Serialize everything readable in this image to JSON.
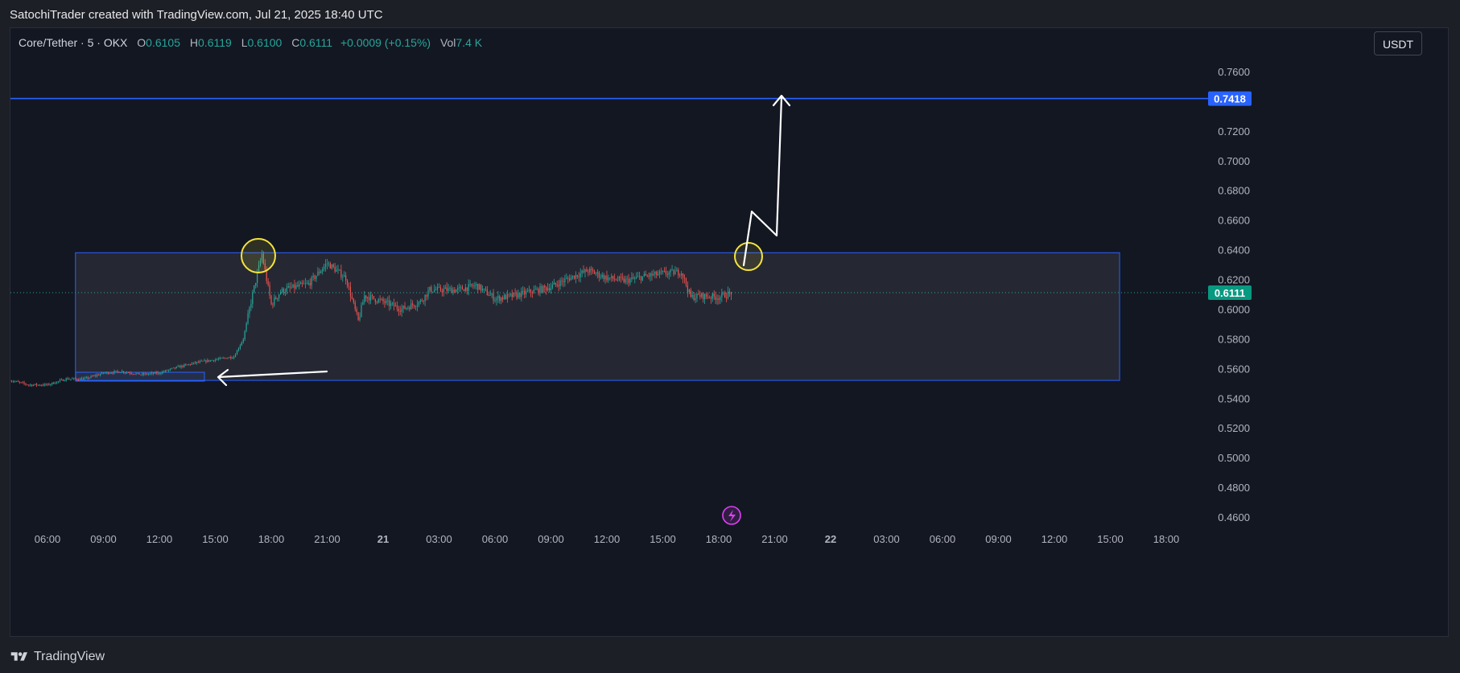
{
  "header": {
    "credit": "SatochiTrader created with TradingView.com, Jul 21, 2025 18:40 UTC"
  },
  "legend": {
    "symbol": "Core/Tether · 5 · OKX",
    "o_label": "O",
    "o": "0.6105",
    "h_label": "H",
    "h": "0.6119",
    "l_label": "L",
    "l": "0.6100",
    "c_label": "C",
    "c": "0.6111",
    "change": "+0.0009 (+0.15%)",
    "vol_label": "Vol",
    "vol": "7.4 K"
  },
  "currency_button": "USDT",
  "price_axis": {
    "ticks": [
      "0.7600",
      "0.7200",
      "0.7000",
      "0.6800",
      "0.6600",
      "0.6400",
      "0.6200",
      "0.6000",
      "0.5800",
      "0.5600",
      "0.5400",
      "0.5200",
      "0.5000",
      "0.4800",
      "0.4600"
    ],
    "target_badge": "0.7418",
    "last_price_badge": "0.6111"
  },
  "time_axis": {
    "ticks": [
      "06:00",
      "09:00",
      "12:00",
      "15:00",
      "18:00",
      "21:00",
      "21",
      "03:00",
      "06:00",
      "09:00",
      "12:00",
      "15:00",
      "18:00",
      "21:00",
      "22",
      "03:00",
      "06:00",
      "09:00",
      "12:00",
      "15:00",
      "18:00"
    ]
  },
  "colors": {
    "background": "#131722",
    "up": "#26a69a",
    "down": "#ef5350",
    "target_line": "#2962ff",
    "range_box": "#2962ff",
    "highlight": "#f5e43a",
    "annotation": "#ffffff"
  },
  "footer": {
    "brand": "TradingView"
  },
  "chart_data": {
    "type": "candlestick",
    "symbol": "Core/Tether",
    "interval": "5",
    "exchange": "OKX",
    "ylim": [
      0.455,
      0.775
    ],
    "resistance_level": 0.7418,
    "last_price": 0.6111,
    "range_box": {
      "from": "Jul 20 07:30",
      "to": "Jul 22 15:30",
      "low": 0.552,
      "high": 0.638
    },
    "close_path": [
      [
        "Jul 20 04:00",
        0.552
      ],
      [
        "Jul 20 05:00",
        0.549
      ],
      [
        "Jul 20 06:00",
        0.549
      ],
      [
        "Jul 20 07:00",
        0.553
      ],
      [
        "Jul 20 08:00",
        0.553
      ],
      [
        "Jul 20 09:00",
        0.557
      ],
      [
        "Jul 20 10:00",
        0.558
      ],
      [
        "Jul 20 11:00",
        0.556
      ],
      [
        "Jul 20 12:00",
        0.557
      ],
      [
        "Jul 20 13:00",
        0.561
      ],
      [
        "Jul 20 14:00",
        0.564
      ],
      [
        "Jul 20 15:00",
        0.566
      ],
      [
        "Jul 20 16:00",
        0.568
      ],
      [
        "Jul 20 16:30",
        0.58
      ],
      [
        "Jul 20 17:00",
        0.61
      ],
      [
        "Jul 20 17:30",
        0.637
      ],
      [
        "Jul 20 18:00",
        0.603
      ],
      [
        "Jul 20 18:30",
        0.612
      ],
      [
        "Jul 20 19:00",
        0.614
      ],
      [
        "Jul 20 20:00",
        0.617
      ],
      [
        "Jul 20 21:00",
        0.631
      ],
      [
        "Jul 20 22:00",
        0.621
      ],
      [
        "Jul 20 22:40",
        0.592
      ],
      [
        "Jul 20 23:00",
        0.609
      ],
      [
        "Jul 21 00:00",
        0.605
      ],
      [
        "Jul 21 01:00",
        0.6
      ],
      [
        "Jul 21 02:00",
        0.605
      ],
      [
        "Jul 21 02:30",
        0.613
      ],
      [
        "Jul 21 04:00",
        0.613
      ],
      [
        "Jul 21 05:00",
        0.616
      ],
      [
        "Jul 21 06:00",
        0.607
      ],
      [
        "Jul 21 07:00",
        0.609
      ],
      [
        "Jul 21 08:00",
        0.612
      ],
      [
        "Jul 21 09:00",
        0.615
      ],
      [
        "Jul 21 10:00",
        0.621
      ],
      [
        "Jul 21 11:00",
        0.626
      ],
      [
        "Jul 21 12:00",
        0.621
      ],
      [
        "Jul 21 13:00",
        0.619
      ],
      [
        "Jul 21 14:00",
        0.622
      ],
      [
        "Jul 21 15:00",
        0.624
      ],
      [
        "Jul 21 16:00",
        0.625
      ],
      [
        "Jul 21 16:30",
        0.608
      ],
      [
        "Jul 21 17:00",
        0.609
      ],
      [
        "Jul 21 18:00",
        0.608
      ],
      [
        "Jul 21 18:40",
        0.611
      ]
    ]
  }
}
